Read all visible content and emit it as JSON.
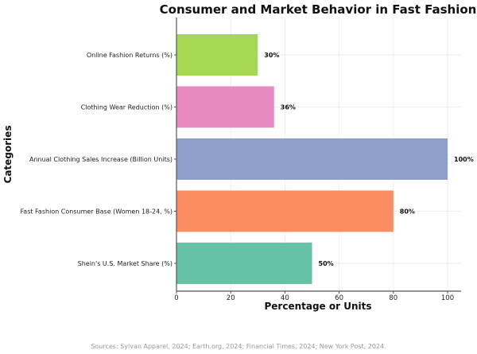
{
  "chart_data": {
    "type": "bar",
    "orientation": "horizontal",
    "title": "Consumer and Market Behavior in Fast Fashion",
    "xlabel": "Percentage or Units",
    "ylabel": "Categories",
    "categories": [
      "Online Fashion Returns (%)",
      "Clothing Wear Reduction (%)",
      "Annual Clothing Sales Increase (Billion Units)",
      "Fast Fashion Consumer Base (Women 18-24, %)",
      "Shein's U.S. Market Share (%)"
    ],
    "values": [
      30,
      36,
      100,
      80,
      50
    ],
    "data_labels": [
      "30%",
      "36%",
      "100%",
      "80%",
      "50%"
    ],
    "colors": [
      "#a6d854",
      "#e78ac3",
      "#8da0cb",
      "#fc8d62",
      "#66c2a5"
    ],
    "xticks": [
      0,
      20,
      40,
      60,
      80,
      100
    ],
    "xlim": [
      0,
      105
    ],
    "grid": true,
    "source_note": "Sources: Sylvan Apparel, 2024; Earth.org, 2024; Financial Times, 2024; New York Post, 2024."
  }
}
